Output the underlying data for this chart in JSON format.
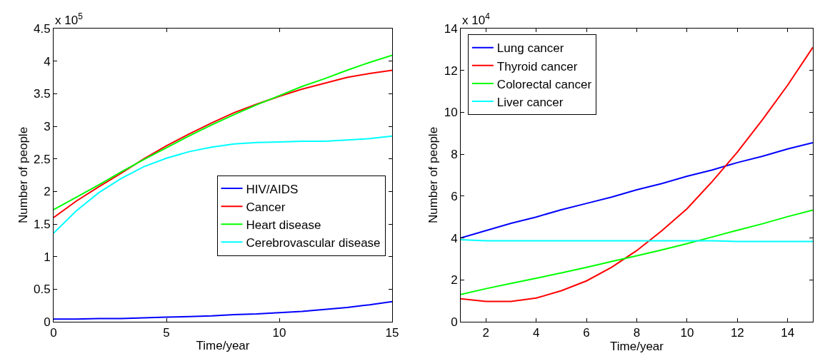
{
  "chart_data": [
    {
      "type": "line",
      "xlabel": "Time/year",
      "ylabel": "Number of people",
      "annotations": [
        "x 10$^{5}$"
      ],
      "x": [
        0,
        1,
        2,
        3,
        4,
        5,
        6,
        7,
        8,
        9,
        10,
        11,
        12,
        13,
        14,
        15
      ],
      "xlim": [
        0,
        15
      ],
      "xticks": [
        0,
        5,
        10,
        15
      ],
      "ylim": [
        0,
        4.5
      ],
      "yticks": [
        0,
        0.5,
        1,
        1.5,
        2,
        2.5,
        3,
        3.5,
        4,
        4.5
      ],
      "grid": false,
      "legend": "right",
      "marker": "none",
      "line_style": "solid",
      "series": [
        {
          "name": "HIV/AIDS",
          "color": "#0000ff",
          "values": [
            0.04,
            0.04,
            0.05,
            0.05,
            0.06,
            0.07,
            0.08,
            0.09,
            0.11,
            0.12,
            0.14,
            0.16,
            0.19,
            0.22,
            0.26,
            0.31
          ]
        },
        {
          "name": "Cancer",
          "color": "#ff0000",
          "values": [
            1.6,
            1.85,
            2.07,
            2.28,
            2.5,
            2.7,
            2.88,
            3.05,
            3.21,
            3.34,
            3.46,
            3.57,
            3.66,
            3.75,
            3.81,
            3.86
          ]
        },
        {
          "name": "Heart disease",
          "color": "#00ff00",
          "values": [
            1.72,
            1.91,
            2.1,
            2.3,
            2.49,
            2.67,
            2.85,
            3.02,
            3.18,
            3.33,
            3.47,
            3.61,
            3.73,
            3.86,
            3.98,
            4.09
          ]
        },
        {
          "name": "Cerebrovascular disease",
          "color": "#00ffff",
          "values": [
            1.36,
            1.7,
            1.98,
            2.2,
            2.38,
            2.51,
            2.61,
            2.68,
            2.73,
            2.75,
            2.76,
            2.77,
            2.77,
            2.79,
            2.81,
            2.85
          ]
        }
      ]
    },
    {
      "type": "line",
      "xlabel": "Time/year",
      "ylabel": "Number of people",
      "annotations": [
        "x 10$^{4}$"
      ],
      "x": [
        1,
        2,
        3,
        4,
        5,
        6,
        7,
        8,
        9,
        10,
        11,
        12,
        13,
        14,
        15
      ],
      "xlim": [
        1,
        15
      ],
      "xticks": [
        2,
        4,
        6,
        8,
        10,
        12,
        14
      ],
      "ylim": [
        0,
        14
      ],
      "yticks": [
        0,
        2,
        4,
        6,
        8,
        10,
        12,
        14
      ],
      "grid": false,
      "legend": "top left",
      "marker": "none",
      "line_style": "solid",
      "series": [
        {
          "name": "Lung cancer",
          "color": "#0000ff",
          "values": [
            4.0,
            4.35,
            4.7,
            5.0,
            5.35,
            5.65,
            5.95,
            6.3,
            6.6,
            6.95,
            7.25,
            7.6,
            7.9,
            8.25,
            8.55
          ]
        },
        {
          "name": "Thyroid cancer",
          "color": "#ff0000",
          "values": [
            1.1,
            0.97,
            0.97,
            1.13,
            1.48,
            1.95,
            2.6,
            3.4,
            4.35,
            5.4,
            6.7,
            8.1,
            9.65,
            11.3,
            13.1
          ]
        },
        {
          "name": "Colorectal cancer",
          "color": "#00ff00",
          "values": [
            1.3,
            1.58,
            1.83,
            2.08,
            2.33,
            2.6,
            2.88,
            3.15,
            3.43,
            3.73,
            4.05,
            4.37,
            4.68,
            5.02,
            5.33
          ]
        },
        {
          "name": "Liver cancer",
          "color": "#00ffff",
          "values": [
            3.92,
            3.87,
            3.87,
            3.87,
            3.87,
            3.87,
            3.87,
            3.87,
            3.87,
            3.87,
            3.87,
            3.83,
            3.83,
            3.83,
            3.83
          ]
        }
      ]
    }
  ]
}
